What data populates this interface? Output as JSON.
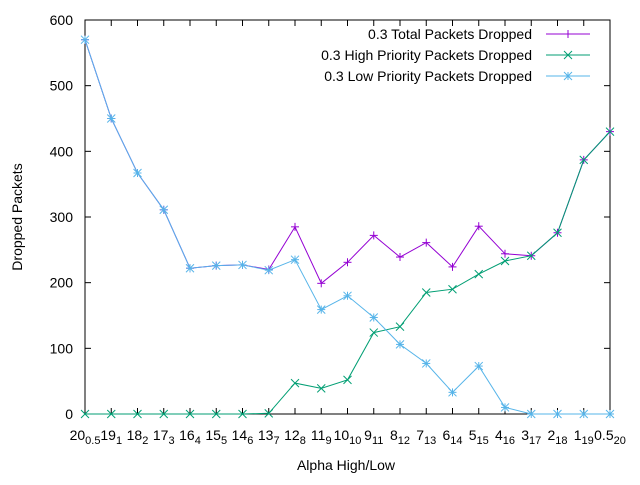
{
  "chart_data": {
    "type": "line",
    "xlabel": "Alpha High/Low",
    "ylabel": "Dropped Packets",
    "ylim": [
      0,
      600
    ],
    "yticks": [
      0,
      100,
      200,
      300,
      400,
      500,
      600
    ],
    "grid": false,
    "legend_position": "top-right",
    "x_tick_labels": [
      [
        "20",
        "0.5"
      ],
      [
        "19",
        "1"
      ],
      [
        "18",
        "2"
      ],
      [
        "17",
        "3"
      ],
      [
        "16",
        "4"
      ],
      [
        "15",
        "5"
      ],
      [
        "14",
        "6"
      ],
      [
        "13",
        "7"
      ],
      [
        "12",
        "8"
      ],
      [
        "11",
        "9"
      ],
      [
        "10",
        "10"
      ],
      [
        "9",
        "11"
      ],
      [
        "8",
        "12"
      ],
      [
        "7",
        "13"
      ],
      [
        "6",
        "14"
      ],
      [
        "5",
        "15"
      ],
      [
        "4",
        "16"
      ],
      [
        "3",
        "17"
      ],
      [
        "2",
        "18"
      ],
      [
        "1",
        "19"
      ],
      [
        "0.5",
        "20"
      ]
    ],
    "series": [
      {
        "name": "0.3 Total Packets Dropped",
        "color": "#9400d3",
        "marker": "plus",
        "values": [
          570,
          450,
          367,
          311,
          222,
          226,
          227,
          220,
          285,
          199,
          231,
          272,
          239,
          261,
          224,
          286,
          244,
          241,
          276,
          387,
          430
        ]
      },
      {
        "name": "0.3 High Priority Packets Dropped",
        "color": "#009e73",
        "marker": "cross",
        "values": [
          0,
          0,
          0,
          0,
          0,
          0,
          0,
          1,
          47,
          39,
          52,
          124,
          133,
          185,
          190,
          213,
          233,
          241,
          276,
          387,
          430
        ]
      },
      {
        "name": "0.3 Low Priority Packets Dropped",
        "color": "#56b4e9",
        "marker": "star",
        "values": [
          570,
          450,
          367,
          311,
          222,
          226,
          227,
          219,
          235,
          159,
          180,
          147,
          106,
          77,
          33,
          73,
          10,
          0,
          0,
          0,
          0
        ]
      }
    ]
  }
}
